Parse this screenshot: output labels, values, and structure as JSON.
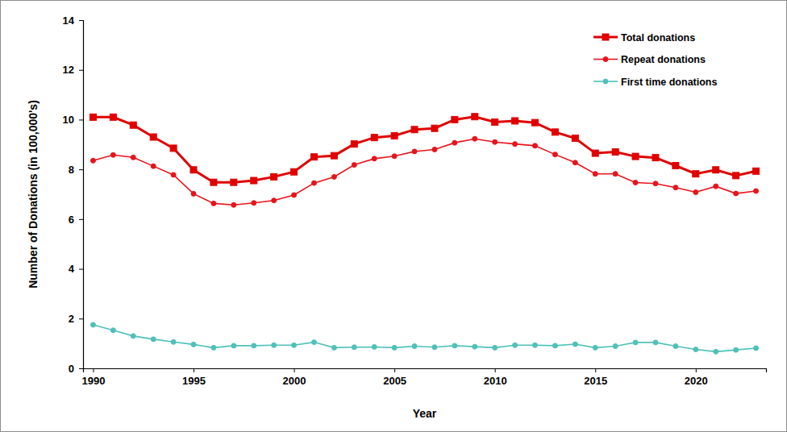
{
  "chart_data": {
    "type": "line",
    "x_label": "Year",
    "y_label": "Number of Donations  (in 100,000's)",
    "x": [
      1990,
      1991,
      1992,
      1993,
      1994,
      1995,
      1996,
      1997,
      1998,
      1999,
      2000,
      2001,
      2002,
      2003,
      2004,
      2005,
      2006,
      2007,
      2008,
      2009,
      2010,
      2011,
      2012,
      2013,
      2014,
      2015,
      2016,
      2017,
      2018,
      2019,
      2020,
      2021,
      2022,
      2023
    ],
    "series": [
      {
        "name": "Total donations",
        "color": "#e00000",
        "marker": "square",
        "values": [
          10.1,
          10.1,
          9.78,
          9.3,
          8.85,
          7.98,
          7.48,
          7.48,
          7.55,
          7.7,
          7.9,
          8.5,
          8.55,
          9.02,
          9.28,
          9.35,
          9.6,
          9.65,
          10.0,
          10.12,
          9.9,
          9.95,
          9.88,
          9.5,
          9.25,
          8.65,
          8.7,
          8.52,
          8.47,
          8.15,
          7.82,
          7.98,
          7.75,
          7.93
        ]
      },
      {
        "name": "Repeat donations",
        "color": "#e8141b",
        "marker": "circle",
        "values": [
          8.35,
          8.58,
          8.48,
          8.13,
          7.78,
          7.02,
          6.63,
          6.57,
          6.65,
          6.75,
          6.97,
          7.45,
          7.7,
          8.18,
          8.43,
          8.53,
          8.72,
          8.8,
          9.07,
          9.23,
          9.1,
          9.02,
          8.95,
          8.6,
          8.27,
          7.82,
          7.82,
          7.47,
          7.43,
          7.27,
          7.08,
          7.32,
          7.03,
          7.13
        ]
      },
      {
        "name": "First time donations",
        "color": "#4fc1b8",
        "marker": "circle",
        "values": [
          1.75,
          1.53,
          1.3,
          1.17,
          1.06,
          0.96,
          0.83,
          0.91,
          0.91,
          0.93,
          0.93,
          1.05,
          0.83,
          0.85,
          0.86,
          0.83,
          0.89,
          0.85,
          0.91,
          0.87,
          0.83,
          0.93,
          0.93,
          0.91,
          0.97,
          0.83,
          0.89,
          1.04,
          1.04,
          0.89,
          0.76,
          0.67,
          0.74,
          0.81
        ]
      }
    ],
    "xlim": [
      1989.5,
      2023.5
    ],
    "xticks": [
      1990,
      1995,
      2000,
      2005,
      2010,
      2015,
      2020
    ],
    "ylim": [
      0,
      14
    ],
    "yticks": [
      0,
      2,
      4,
      6,
      8,
      10,
      12,
      14
    ],
    "grid": false,
    "legend": "top-right"
  }
}
